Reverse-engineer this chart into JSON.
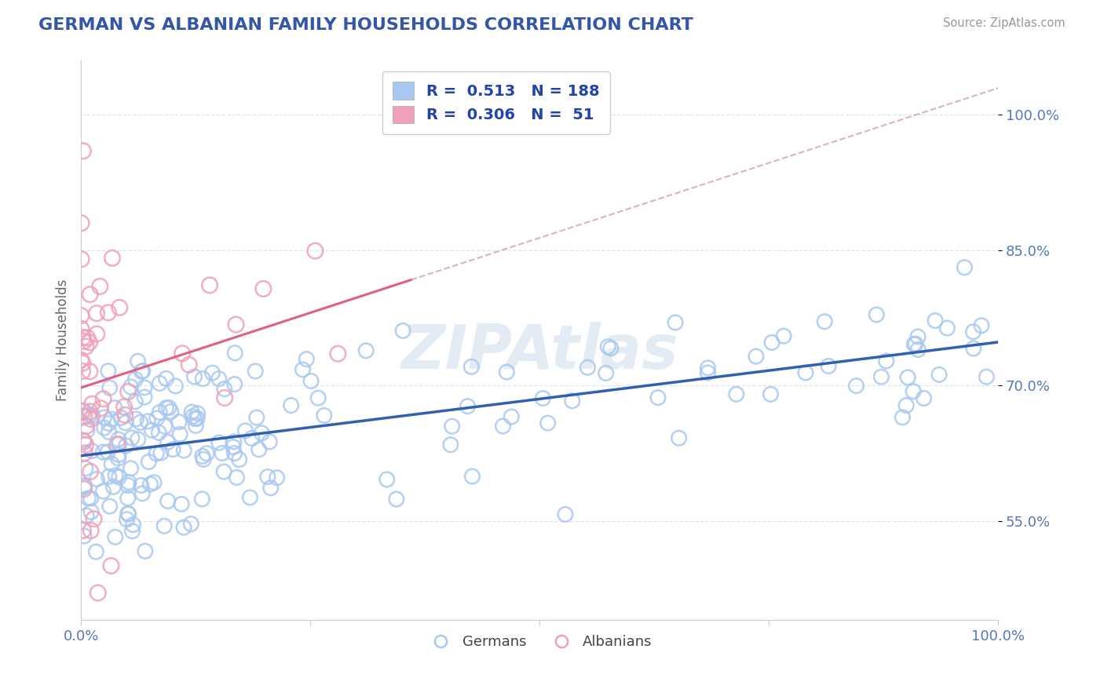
{
  "title": "GERMAN VS ALBANIAN FAMILY HOUSEHOLDS CORRELATION CHART",
  "source": "Source: ZipAtlas.com",
  "ylabel": "Family Households",
  "ytick_vals": [
    0.55,
    0.7,
    0.85,
    1.0
  ],
  "legend_german_R": "0.513",
  "legend_german_N": "188",
  "legend_albanian_R": "0.306",
  "legend_albanian_N": "51",
  "german_color": "#a8c8f0",
  "albanian_color": "#f0a0b8",
  "german_line_color": "#3060b0",
  "albanian_line_color": "#e06080",
  "albanian_dashed_color": "#d0a0b0",
  "watermark": "ZIPAtlas",
  "title_color": "#3355aa",
  "legend_text_color": "#2244aa",
  "background_color": "#ffffff",
  "grid_color": "#dde5f0",
  "xmin": 0.0,
  "xmax": 1.0,
  "ymin": 0.44,
  "ymax": 1.06
}
